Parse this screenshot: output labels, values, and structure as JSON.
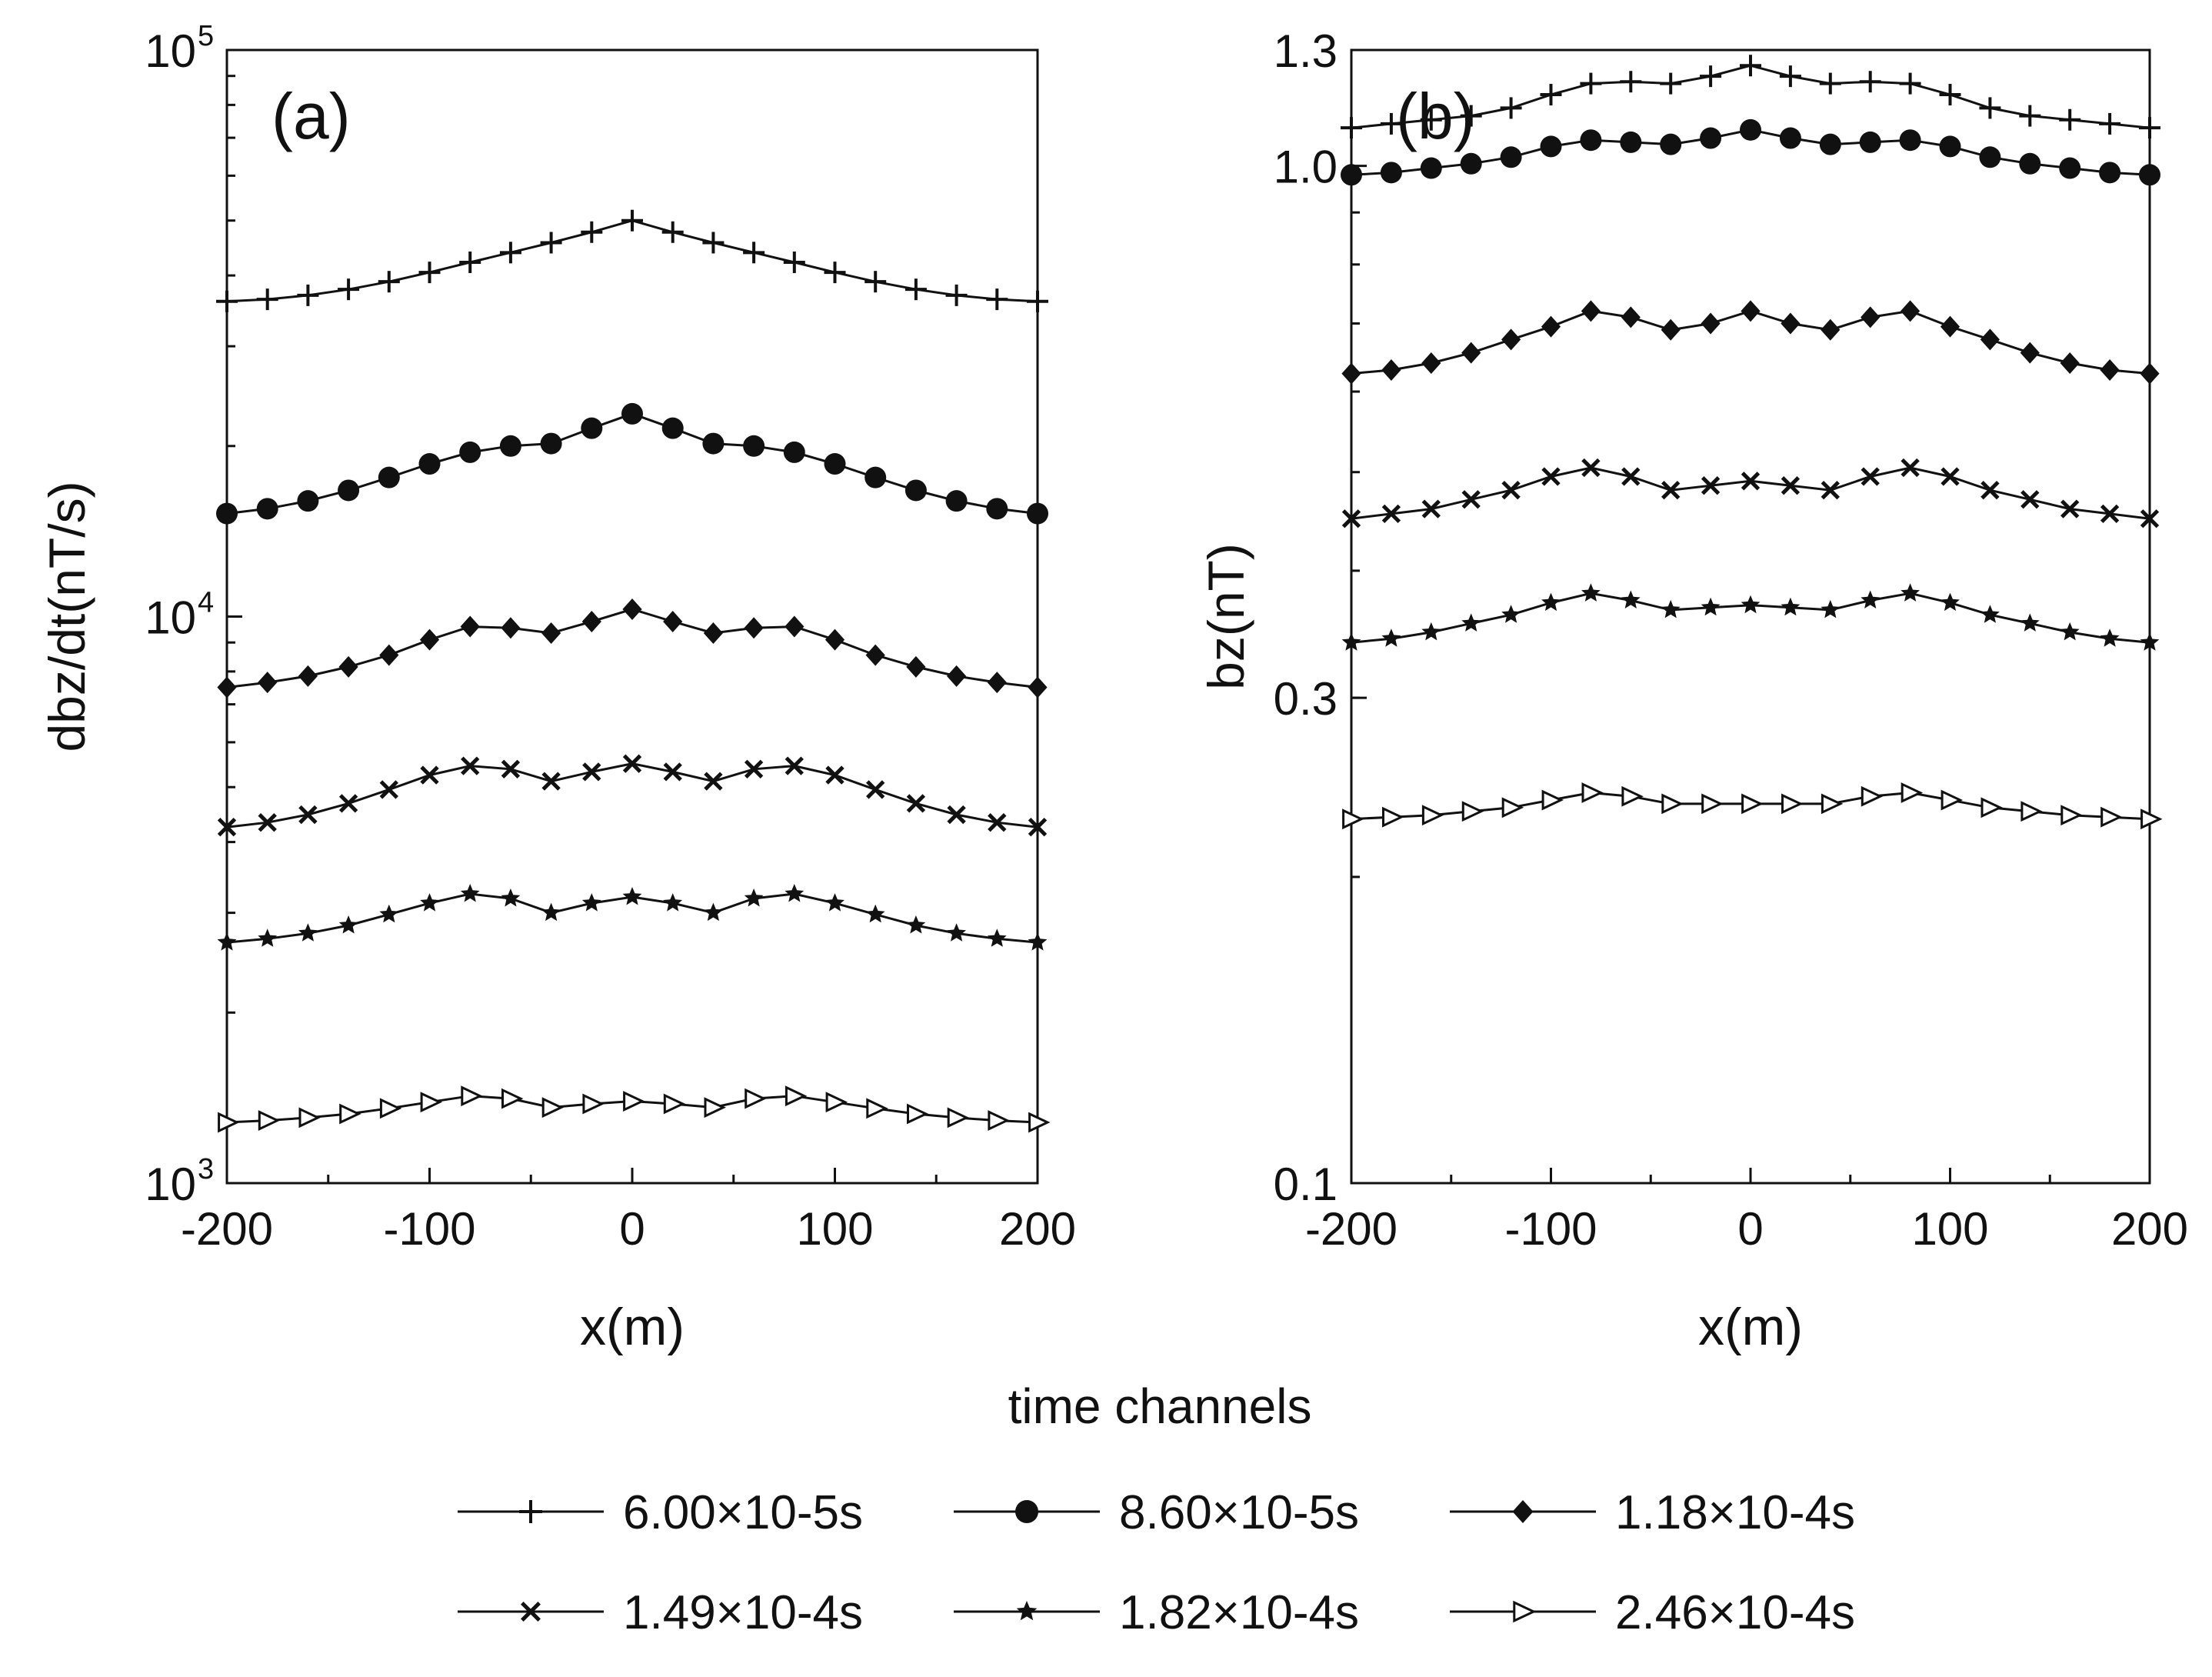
{
  "x": [
    -200,
    -180,
    -160,
    -140,
    -120,
    -100,
    -80,
    -60,
    -40,
    -20,
    0,
    20,
    40,
    60,
    80,
    100,
    120,
    140,
    160,
    180,
    200
  ],
  "chart_data": [
    {
      "id": "a",
      "panel_label": "(a)",
      "type": "line",
      "yscale": "log",
      "xlabel": "x(m)",
      "ylabel": "dbz/dt(nT/s)",
      "xlim": [
        -200,
        200
      ],
      "ylim": [
        1000,
        100000
      ],
      "xticks": [
        {
          "v": -200,
          "label": "-200"
        },
        {
          "v": -100,
          "label": "-100"
        },
        {
          "v": 0,
          "label": "0"
        },
        {
          "v": 100,
          "label": "100"
        },
        {
          "v": 200,
          "label": "200"
        }
      ],
      "yticks": [
        {
          "v": 1000,
          "base": "10",
          "exp": "3"
        },
        {
          "v": 10000,
          "base": "10",
          "exp": "4"
        },
        {
          "v": 100000,
          "base": "10",
          "exp": "5"
        }
      ],
      "series": [
        {
          "name": "6.00×10-5s",
          "marker": "plus",
          "values": [
            36000,
            36300,
            36900,
            37800,
            39000,
            40500,
            42200,
            43900,
            45700,
            47700,
            50000,
            47700,
            45700,
            43900,
            42200,
            40500,
            39000,
            37800,
            36900,
            36300,
            36000
          ]
        },
        {
          "name": "8.60×10-5s",
          "marker": "circle",
          "values": [
            15200,
            15500,
            16000,
            16700,
            17600,
            18600,
            19500,
            20000,
            20200,
            21500,
            22800,
            21500,
            20200,
            20000,
            19500,
            18600,
            17600,
            16700,
            16000,
            15500,
            15200
          ]
        },
        {
          "name": "1.18×10-4s",
          "marker": "diamond",
          "values": [
            7500,
            7650,
            7850,
            8150,
            8550,
            9100,
            9600,
            9550,
            9350,
            9800,
            10300,
            9800,
            9350,
            9550,
            9600,
            9100,
            8550,
            8150,
            7850,
            7650,
            7500
          ]
        },
        {
          "name": "1.49×10-4s",
          "marker": "x",
          "values": [
            4250,
            4330,
            4470,
            4680,
            4950,
            5250,
            5450,
            5380,
            5120,
            5320,
            5500,
            5320,
            5120,
            5380,
            5450,
            5250,
            4950,
            4680,
            4470,
            4330,
            4250
          ]
        },
        {
          "name": "1.82×10-4s",
          "marker": "star",
          "values": [
            2660,
            2700,
            2760,
            2850,
            2980,
            3120,
            3240,
            3180,
            3000,
            3120,
            3200,
            3120,
            3000,
            3180,
            3240,
            3120,
            2980,
            2850,
            2760,
            2700,
            2660
          ]
        },
        {
          "name": "2.46×10-4s",
          "marker": "triangle",
          "values": [
            1280,
            1290,
            1305,
            1325,
            1355,
            1390,
            1425,
            1410,
            1360,
            1380,
            1395,
            1380,
            1360,
            1410,
            1425,
            1390,
            1355,
            1325,
            1305,
            1290,
            1280
          ]
        }
      ]
    },
    {
      "id": "b",
      "panel_label": "(b)",
      "type": "line",
      "yscale": "log",
      "xlabel": "x(m)",
      "ylabel": "bz(nT)",
      "xlim": [
        -200,
        200
      ],
      "ylim": [
        0.1,
        1.3
      ],
      "xticks": [
        {
          "v": -200,
          "label": "-200"
        },
        {
          "v": -100,
          "label": "-100"
        },
        {
          "v": 0,
          "label": "0"
        },
        {
          "v": 100,
          "label": "100"
        },
        {
          "v": 200,
          "label": "200"
        }
      ],
      "yticks": [
        {
          "v": 0.1,
          "label": "0.1"
        },
        {
          "v": 0.3,
          "label": "0.3"
        },
        {
          "v": 1.0,
          "label": "1.0"
        },
        {
          "v": 1.3,
          "label": "1.3"
        }
      ],
      "series": [
        {
          "name": "6.00×10-5s",
          "marker": "plus",
          "values": [
            1.09,
            1.1,
            1.11,
            1.12,
            1.14,
            1.175,
            1.205,
            1.21,
            1.205,
            1.225,
            1.255,
            1.225,
            1.205,
            1.21,
            1.205,
            1.175,
            1.14,
            1.12,
            1.11,
            1.1,
            1.09
          ]
        },
        {
          "name": "8.60×10-5s",
          "marker": "circle",
          "values": [
            0.98,
            0.985,
            0.995,
            1.005,
            1.02,
            1.045,
            1.06,
            1.055,
            1.05,
            1.065,
            1.085,
            1.065,
            1.05,
            1.055,
            1.06,
            1.045,
            1.02,
            1.005,
            0.995,
            0.985,
            0.98
          ]
        },
        {
          "name": "1.18×10-4s",
          "marker": "diamond",
          "values": [
            0.625,
            0.63,
            0.64,
            0.655,
            0.675,
            0.695,
            0.72,
            0.71,
            0.69,
            0.7,
            0.72,
            0.7,
            0.69,
            0.71,
            0.72,
            0.695,
            0.675,
            0.655,
            0.64,
            0.63,
            0.625
          ]
        },
        {
          "name": "1.49×10-4s",
          "marker": "x",
          "values": [
            0.45,
            0.455,
            0.46,
            0.47,
            0.48,
            0.495,
            0.505,
            0.495,
            0.48,
            0.485,
            0.49,
            0.485,
            0.48,
            0.495,
            0.505,
            0.495,
            0.48,
            0.47,
            0.46,
            0.455,
            0.45
          ]
        },
        {
          "name": "1.82×10-4s",
          "marker": "star",
          "values": [
            0.34,
            0.343,
            0.348,
            0.355,
            0.362,
            0.372,
            0.38,
            0.374,
            0.366,
            0.368,
            0.37,
            0.368,
            0.366,
            0.374,
            0.38,
            0.372,
            0.362,
            0.355,
            0.348,
            0.343,
            0.34
          ]
        },
        {
          "name": "2.46×10-4s",
          "marker": "triangle",
          "values": [
            0.228,
            0.229,
            0.23,
            0.232,
            0.234,
            0.238,
            0.242,
            0.24,
            0.236,
            0.236,
            0.236,
            0.236,
            0.236,
            0.24,
            0.242,
            0.238,
            0.234,
            0.232,
            0.23,
            0.229,
            0.228
          ]
        }
      ]
    }
  ],
  "legend": {
    "title": "time channels",
    "items": [
      {
        "label": "6.00×10-5s",
        "marker": "plus"
      },
      {
        "label": "8.60×10-5s",
        "marker": "circle"
      },
      {
        "label": "1.18×10-4s",
        "marker": "diamond"
      },
      {
        "label": "1.49×10-4s",
        "marker": "x"
      },
      {
        "label": "1.82×10-4s",
        "marker": "star"
      },
      {
        "label": "2.46×10-4s",
        "marker": "triangle"
      }
    ]
  },
  "colors": {
    "line": "#111111",
    "background": "#ffffff"
  }
}
